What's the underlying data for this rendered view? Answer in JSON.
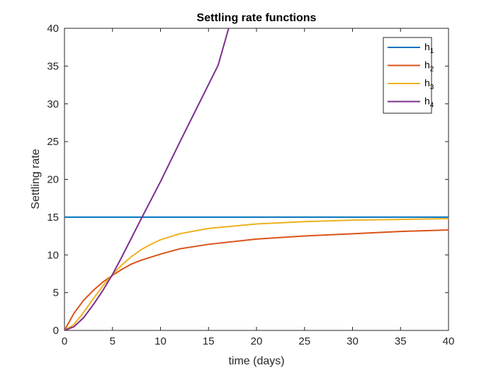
{
  "chart_data": {
    "type": "line",
    "title": "Settling rate functions",
    "xlabel": "time (days)",
    "ylabel": "Settling rate",
    "xlim": [
      0,
      40
    ],
    "ylim": [
      0,
      40
    ],
    "xticks": [
      0,
      5,
      10,
      15,
      20,
      25,
      30,
      35,
      40
    ],
    "yticks": [
      0,
      5,
      10,
      15,
      20,
      25,
      30,
      35,
      40
    ],
    "grid": false,
    "legend_position": "top-right",
    "series": [
      {
        "name": "h1",
        "label_base": "h",
        "label_sub": "1",
        "color": "#0072BD",
        "x": [
          0,
          5,
          10,
          15,
          20,
          25,
          30,
          35,
          40
        ],
        "y": [
          15,
          15,
          15,
          15,
          15,
          15,
          15,
          15,
          15
        ]
      },
      {
        "name": "h2",
        "label_base": "h",
        "label_sub": "2",
        "color": "#D95319",
        "x": [
          0,
          1,
          2,
          3,
          4,
          5,
          6,
          7,
          8,
          10,
          12,
          15,
          20,
          25,
          30,
          35,
          40
        ],
        "y": [
          0,
          2.3,
          4.0,
          5.3,
          6.4,
          7.3,
          8.1,
          8.8,
          9.3,
          10.1,
          10.8,
          11.4,
          12.1,
          12.5,
          12.8,
          13.1,
          13.3
        ]
      },
      {
        "name": "h3",
        "label_base": "h",
        "label_sub": "3",
        "color": "#EDB120",
        "x": [
          0,
          1,
          2,
          3,
          4,
          5,
          6,
          7,
          8,
          9,
          10,
          12,
          15,
          20,
          25,
          30,
          35,
          40
        ],
        "y": [
          0,
          0.8,
          2.4,
          4.2,
          5.9,
          7.4,
          8.7,
          9.8,
          10.7,
          11.4,
          12.0,
          12.8,
          13.5,
          14.1,
          14.4,
          14.6,
          14.7,
          14.8
        ]
      },
      {
        "name": "h4",
        "label_base": "h",
        "label_sub": "4",
        "color": "#7E2F8E",
        "x": [
          0,
          1,
          2,
          3,
          4,
          5,
          6,
          8,
          10,
          12,
          14,
          16,
          17.1
        ],
        "y": [
          0,
          0.5,
          1.7,
          3.4,
          5.3,
          7.4,
          9.8,
          14.8,
          19.7,
          24.9,
          30.0,
          35.1,
          40.0
        ]
      }
    ]
  }
}
